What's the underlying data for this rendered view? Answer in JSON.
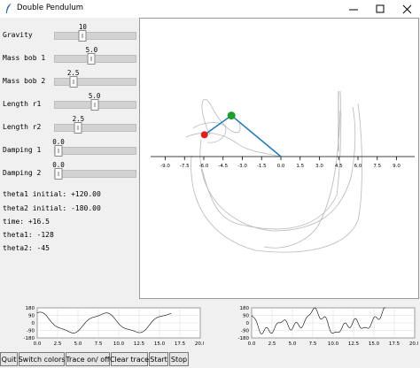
{
  "window": {
    "title": "Double Pendulum",
    "minimize_icon": "minimize-icon",
    "maximize_icon": "maximize-icon",
    "close_icon": "close-icon"
  },
  "sliders": [
    {
      "label": "Gravity",
      "value": "10",
      "fraction": 0.33
    },
    {
      "label": "Mass bob 1",
      "value": "5.0",
      "fraction": 0.45
    },
    {
      "label": "Mass bob 2",
      "value": "2.5",
      "fraction": 0.2
    },
    {
      "label": "Length r1",
      "value": "5.0",
      "fraction": 0.49
    },
    {
      "label": "Length r2",
      "value": "2.5",
      "fraction": 0.27
    },
    {
      "label": "Damping 1",
      "value": "0.0",
      "fraction": 0.0
    },
    {
      "label": "Damping 2",
      "value": "0.0",
      "fraction": 0.0
    }
  ],
  "readouts": [
    "theta1 initial: +120.00",
    "theta2 initial: -180.00",
    "time: +16.5",
    "theta1: -128",
    "theta2: -45"
  ],
  "pendulum": {
    "x_ticks": [
      "-9.0",
      "-7.5",
      "-6.0",
      "-4.5",
      "-3.0",
      "-1.5",
      "0.0",
      "1.5",
      "3.0",
      "4.5",
      "6.0",
      "7.5",
      "9.0"
    ],
    "bob1_color": "#1f9d2e",
    "bob2_color": "#e0201e",
    "rod_color": "#1f77b4",
    "bob1": {
      "x": -3.85,
      "y": 3.2
    },
    "bob2": {
      "x": -5.95,
      "y": 1.7
    }
  },
  "theta1_plot": {
    "y_ticks": [
      "180",
      "90",
      "0",
      "-90",
      "-180"
    ],
    "x_ticks": [
      "0.0",
      "2.5",
      "5.0",
      "7.5",
      "10.0",
      "12.5",
      "15.0",
      "17.5",
      "20.0"
    ],
    "x_range": [
      0,
      20
    ],
    "y_range": [
      -180,
      180
    ]
  },
  "theta2_plot": {
    "y_ticks": [
      "180",
      "90",
      "0",
      "-90",
      "-180"
    ],
    "x_ticks": [
      "0.0",
      "2.5",
      "5.0",
      "7.5",
      "10.0",
      "12.5",
      "15.0",
      "17.5",
      "20.0"
    ],
    "x_range": [
      0,
      20
    ],
    "y_range": [
      -180,
      180
    ]
  },
  "buttons": [
    "Quit",
    "Switch colors",
    "Trace on/ off",
    "Clear trace",
    "Start",
    "Stop"
  ]
}
